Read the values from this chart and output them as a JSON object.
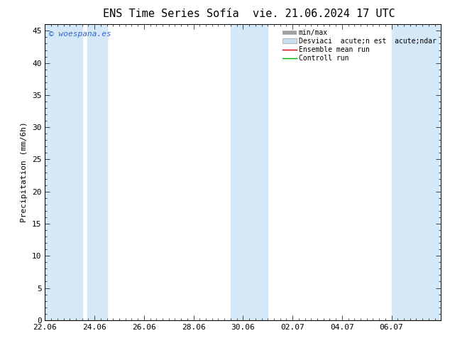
{
  "title_left": "ENS Time Series Sofía",
  "title_right": "vie. 21.06.2024 17 UTC",
  "ylabel": "Precipitation (mm/6h)",
  "watermark": "© woespana.es",
  "legend_labels": [
    "min/max",
    "Desviaci  acute;n est  acute;ndar",
    "Ensemble mean run",
    "Controll run"
  ],
  "legend_colors_line": [
    "#a0a0a0",
    "#c0c0c0",
    "#cc0000",
    "#00aa00"
  ],
  "xlim": [
    0,
    16
  ],
  "ylim": [
    0,
    46
  ],
  "yticks": [
    0,
    5,
    10,
    15,
    20,
    25,
    30,
    35,
    40,
    45
  ],
  "xtick_positions": [
    0,
    2,
    4,
    6,
    8,
    10,
    12,
    14
  ],
  "xtick_labels": [
    "22.06",
    "24.06",
    "26.06",
    "28.06",
    "30.06",
    "02.07",
    "04.07",
    "06.07"
  ],
  "shaded_bands": [
    [
      0.0,
      1.5
    ],
    [
      1.7,
      2.5
    ],
    [
      7.5,
      9.0
    ],
    [
      14.0,
      16.0
    ]
  ],
  "band_color": "#d4e8f8",
  "bg_color": "#ffffff",
  "title_fontsize": 11,
  "axis_fontsize": 8,
  "watermark_color": "#3366cc"
}
